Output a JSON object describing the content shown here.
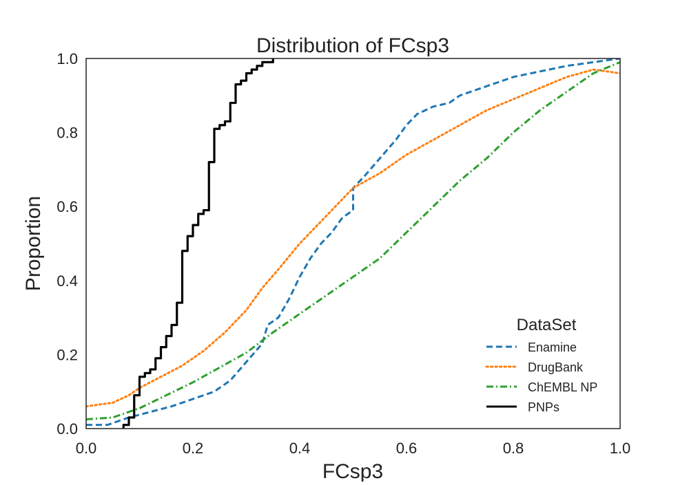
{
  "chart_data": {
    "type": "line",
    "title": "Distribution of FCsp3",
    "xlabel": "FCsp3",
    "ylabel": "Proportion",
    "xlim": [
      0.0,
      1.0
    ],
    "ylim": [
      0.0,
      1.0
    ],
    "xticks": [
      0.0,
      0.2,
      0.4,
      0.6,
      0.8,
      1.0
    ],
    "yticks": [
      0.0,
      0.2,
      0.4,
      0.6,
      0.8,
      1.0
    ],
    "xtick_labels": [
      "0.0",
      "0.2",
      "0.4",
      "0.6",
      "0.8",
      "1.0"
    ],
    "ytick_labels": [
      "0.0",
      "0.2",
      "0.4",
      "0.6",
      "0.8",
      "1.0"
    ],
    "grid": false,
    "legend": {
      "title": "DataSet",
      "placement": "lower-right"
    },
    "series": [
      {
        "name": "Enamine",
        "color": "#1f77b4",
        "style": "dashed",
        "x": [
          0.0,
          0.04,
          0.08,
          0.12,
          0.16,
          0.2,
          0.24,
          0.27,
          0.3,
          0.33,
          0.34,
          0.36,
          0.38,
          0.4,
          0.42,
          0.44,
          0.46,
          0.48,
          0.5,
          0.5,
          0.52,
          0.55,
          0.58,
          0.6,
          0.62,
          0.65,
          0.68,
          0.7,
          0.72,
          0.75,
          0.78,
          0.8,
          0.85,
          0.9,
          0.95,
          1.0
        ],
        "y": [
          0.01,
          0.01,
          0.03,
          0.045,
          0.06,
          0.08,
          0.1,
          0.13,
          0.18,
          0.23,
          0.28,
          0.3,
          0.35,
          0.41,
          0.46,
          0.5,
          0.53,
          0.57,
          0.59,
          0.65,
          0.68,
          0.73,
          0.78,
          0.82,
          0.85,
          0.87,
          0.88,
          0.9,
          0.91,
          0.925,
          0.94,
          0.95,
          0.965,
          0.98,
          0.99,
          1.0
        ]
      },
      {
        "name": "DrugBank",
        "color": "#ff7f0e",
        "style": "dotted",
        "x": [
          0.0,
          0.05,
          0.08,
          0.1,
          0.14,
          0.18,
          0.22,
          0.26,
          0.3,
          0.33,
          0.36,
          0.4,
          0.44,
          0.48,
          0.5,
          0.55,
          0.6,
          0.65,
          0.7,
          0.75,
          0.8,
          0.85,
          0.9,
          0.95,
          1.0
        ],
        "y": [
          0.06,
          0.07,
          0.09,
          0.11,
          0.14,
          0.17,
          0.21,
          0.26,
          0.32,
          0.38,
          0.43,
          0.5,
          0.56,
          0.62,
          0.65,
          0.69,
          0.74,
          0.78,
          0.82,
          0.86,
          0.89,
          0.92,
          0.95,
          0.97,
          0.96
        ]
      },
      {
        "name": "ChEMBL NP",
        "color": "#2ca02c",
        "style": "dashdot",
        "x": [
          0.0,
          0.05,
          0.1,
          0.15,
          0.2,
          0.25,
          0.3,
          0.35,
          0.4,
          0.45,
          0.5,
          0.55,
          0.6,
          0.65,
          0.7,
          0.75,
          0.8,
          0.85,
          0.9,
          0.95,
          1.0
        ],
        "y": [
          0.025,
          0.03,
          0.055,
          0.09,
          0.125,
          0.165,
          0.205,
          0.26,
          0.31,
          0.36,
          0.41,
          0.46,
          0.53,
          0.6,
          0.67,
          0.73,
          0.8,
          0.86,
          0.91,
          0.96,
          0.99
        ]
      },
      {
        "name": "PNPs",
        "color": "#000000",
        "style": "solid",
        "step": true,
        "x": [
          0.07,
          0.08,
          0.09,
          0.1,
          0.11,
          0.12,
          0.13,
          0.14,
          0.15,
          0.16,
          0.17,
          0.18,
          0.19,
          0.2,
          0.21,
          0.22,
          0.23,
          0.24,
          0.25,
          0.26,
          0.27,
          0.28,
          0.29,
          0.3,
          0.31,
          0.32,
          0.33,
          0.34,
          0.35
        ],
        "y": [
          0.01,
          0.03,
          0.09,
          0.14,
          0.15,
          0.16,
          0.19,
          0.22,
          0.25,
          0.28,
          0.34,
          0.48,
          0.52,
          0.55,
          0.58,
          0.59,
          0.72,
          0.81,
          0.82,
          0.83,
          0.88,
          0.93,
          0.94,
          0.96,
          0.97,
          0.98,
          0.99,
          0.99,
          1.0
        ]
      }
    ]
  }
}
